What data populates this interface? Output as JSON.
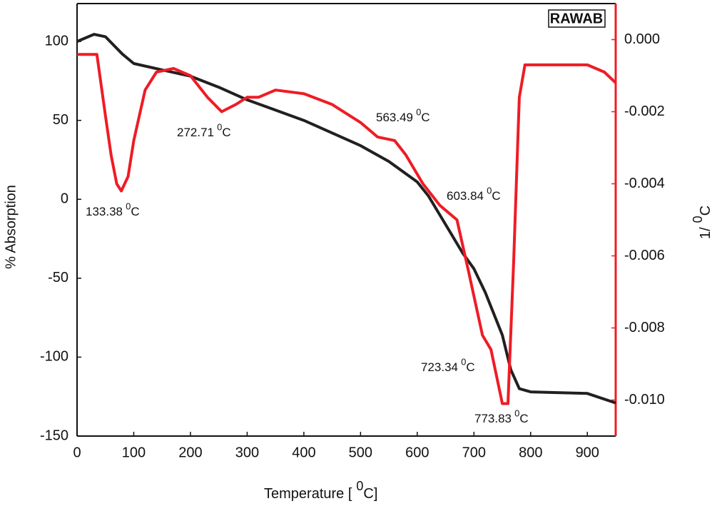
{
  "chart_data": {
    "type": "line",
    "legend_label": "RAWAB",
    "x_label": {
      "text": "Temperature [",
      "sup": "0",
      "after": "C]"
    },
    "y_label": "% Absorption",
    "y2_label": {
      "text": "1/",
      "sup": "0",
      "after": "C"
    },
    "xlim": [
      0,
      950
    ],
    "xticks": [
      0,
      100,
      200,
      300,
      400,
      500,
      600,
      700,
      800,
      900
    ],
    "ylim": [
      -150,
      124
    ],
    "yticks": [
      -150,
      -100,
      -50,
      0,
      50,
      100
    ],
    "y2lim": [
      -0.011,
      0.001
    ],
    "y2ticks": [
      {
        "value": -0.01,
        "label": "-0.010"
      },
      {
        "value": -0.008,
        "label": "-0.008"
      },
      {
        "value": -0.006,
        "label": "-0.006"
      },
      {
        "value": -0.004,
        "label": "-0.004"
      },
      {
        "value": -0.002,
        "label": "-0.002"
      },
      {
        "value": 0,
        "label": "0.000"
      }
    ],
    "series": [
      {
        "color": "#231f20",
        "x": [
          0,
          30,
          50,
          80,
          100,
          150,
          200,
          250,
          300,
          400,
          500,
          550,
          600,
          620,
          650,
          680,
          700,
          720,
          750,
          765,
          780,
          800,
          900,
          950
        ],
        "values": [
          100,
          104.5,
          103,
          92,
          86,
          82,
          78,
          71,
          63,
          50,
          34,
          24,
          11,
          2,
          -16,
          -34,
          -44,
          -59,
          -86,
          -108,
          -120,
          -122,
          -123,
          -129
        ]
      },
      {
        "color": "#ee1c25",
        "axis": "y2",
        "x": [
          0,
          35,
          50,
          60,
          70,
          78,
          90,
          100,
          120,
          140,
          170,
          200,
          230,
          255,
          280,
          300,
          320,
          350,
          400,
          450,
          500,
          530,
          560,
          580,
          610,
          640,
          670,
          690,
          715,
          730,
          750,
          760,
          770,
          780,
          790,
          800,
          900,
          930,
          950
        ],
        "values": [
          -0.00041,
          -0.00041,
          -0.0021,
          -0.0032,
          -0.004,
          -0.0042,
          -0.0038,
          -0.0028,
          -0.0014,
          -0.0009,
          -0.0008,
          -0.001,
          -0.0016,
          -0.002,
          -0.0018,
          -0.0016,
          -0.0016,
          -0.0014,
          -0.0015,
          -0.0018,
          -0.0023,
          -0.0027,
          -0.0028,
          -0.0032,
          -0.004,
          -0.0046,
          -0.005,
          -0.0064,
          -0.0082,
          -0.0086,
          -0.0101,
          -0.0101,
          -0.0062,
          -0.0016,
          -0.0007,
          -0.0007,
          -0.0007,
          -0.0009,
          -0.0012
        ]
      }
    ],
    "annotations": [
      {
        "text": "133.38",
        "sup": "0",
        "after": "C"
      },
      {
        "text": "272.71",
        "sup": "0",
        "after": "C"
      },
      {
        "text": "563.49",
        "sup": "0",
        "after": "C"
      },
      {
        "text": "603.84",
        "sup": "0",
        "after": "C"
      },
      {
        "text": "723.34",
        "sup": "0",
        "after": "C"
      },
      {
        "text": "773.83",
        "sup": "0",
        "after": "C"
      }
    ]
  }
}
